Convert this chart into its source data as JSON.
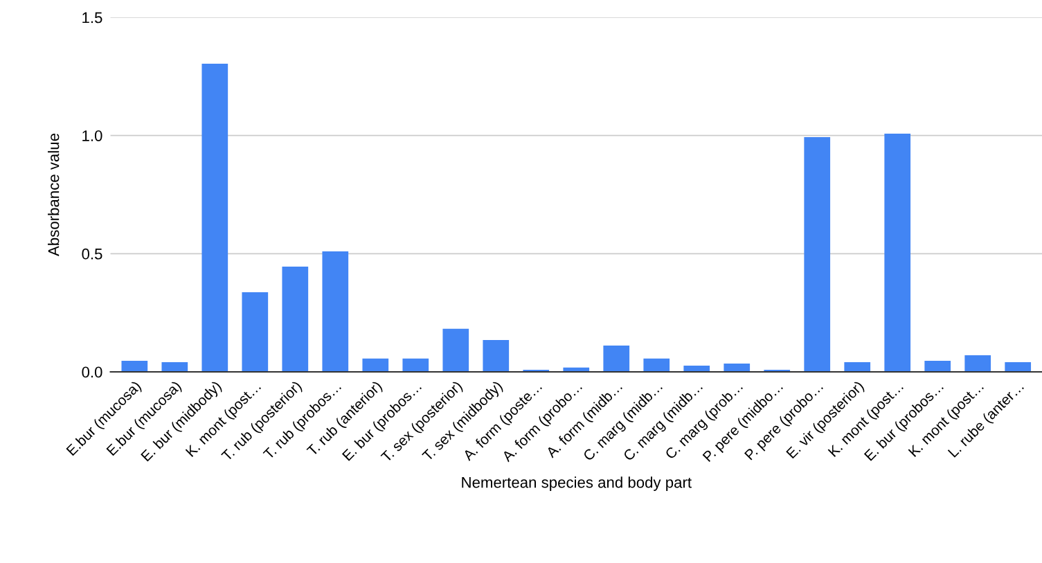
{
  "chart_data": {
    "type": "bar",
    "xlabel": "Nemertean species and body part",
    "ylabel": "Absorbance value",
    "categories": [
      "E.bur (mucosa)",
      "E.bur (mucosa)",
      "E. bur (midbody)",
      "K. mont (post…",
      "T. rub (posterior)",
      "T. rub (probos…",
      "T. rub (anterior)",
      "E. bur (probos…",
      "T. sex (posterior)",
      "T. sex (midbody)",
      "A. form (poste…",
      "A. form (probo…",
      "A. form (midb…",
      "C. marg (midb…",
      "C. marg (midb…",
      "C. marg (prob…",
      "P. pere (midbo…",
      "P. pere (probo…",
      "E. vir (posterior)",
      "K. mont (post…",
      "E. bur (probos…",
      "K. mont (post…",
      "L. rube (anter…"
    ],
    "values": [
      0.047,
      0.041,
      1.304,
      0.337,
      0.445,
      0.51,
      0.056,
      0.056,
      0.182,
      0.135,
      0.009,
      0.018,
      0.111,
      0.056,
      0.026,
      0.035,
      0.009,
      0.993,
      0.041,
      1.008,
      0.047,
      0.07,
      0.041
    ],
    "color": "#4285f4",
    "ylim": [
      0,
      1.5
    ],
    "yticks": [
      {
        "value": 0,
        "label": "0.0"
      },
      {
        "value": 0.5,
        "label": "0.5"
      },
      {
        "value": 1,
        "label": "1.0"
      },
      {
        "value": 1.5,
        "label": "1.5"
      }
    ],
    "grid": "y",
    "legend": false
  }
}
